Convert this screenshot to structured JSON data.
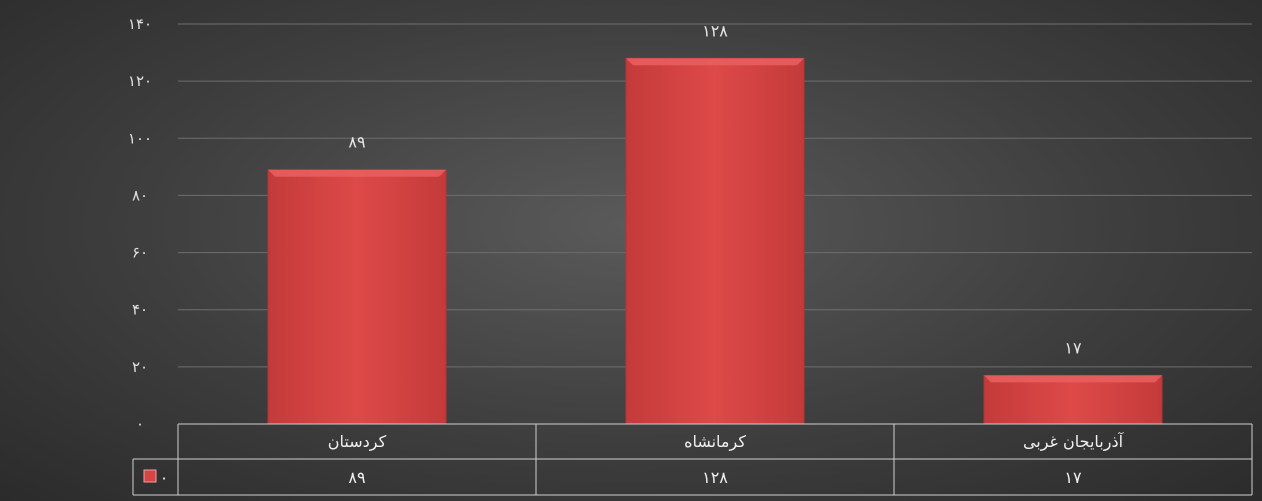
{
  "chart_data": {
    "type": "bar",
    "categories": [
      "کردستان",
      "کرمانشاه",
      "آذربایجان غربی"
    ],
    "series": [
      {
        "name": "۰",
        "values": [
          89,
          128,
          17
        ]
      }
    ],
    "value_labels": [
      "۸۹",
      "۱۲۸",
      "۱۷"
    ],
    "y_tick_labels": [
      "۰",
      "۲۰",
      "۴۰",
      "۶۰",
      "۸۰",
      "۱۰۰",
      "۱۲۰",
      "۱۴۰"
    ],
    "ylim": [
      0,
      140
    ],
    "y_tick_step": 20,
    "grid": true,
    "legend": "data-table",
    "colors": {
      "bar": "#d64545",
      "bar_edge": "#b33434",
      "grid": "#6e6e6e",
      "table_border": "#cfcfcf"
    }
  }
}
